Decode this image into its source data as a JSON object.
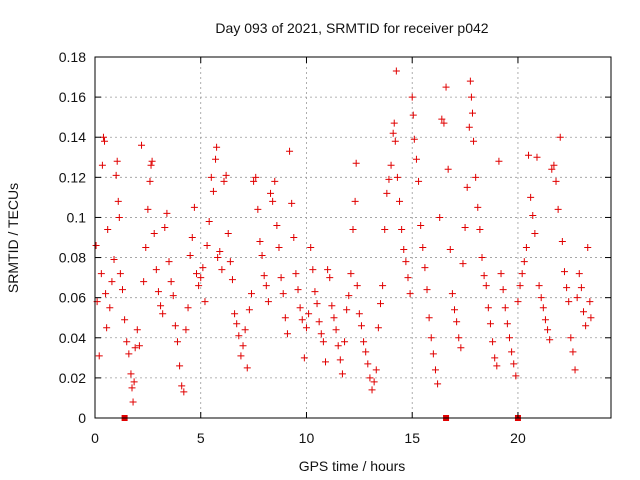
{
  "chart_data": {
    "type": "scatter",
    "title": "Day 093 of 2021, SRMTID for receiver p042",
    "xlabel": "GPS time / hours",
    "ylabel": "SRMTID / TECUs",
    "xlim": [
      0,
      24.4
    ],
    "ylim": [
      0,
      0.18
    ],
    "grid": true,
    "x_ticks": [
      0,
      5,
      10,
      15,
      20
    ],
    "x_tick_labels": [
      "0",
      "5",
      "10",
      "15",
      "20"
    ],
    "y_ticks": [
      0,
      0.02,
      0.04,
      0.06,
      0.08,
      0.1,
      0.12,
      0.14,
      0.16,
      0.18
    ],
    "y_tick_labels": [
      "0",
      "0.02",
      "0.04",
      "0.06",
      "0.08",
      "0.1",
      "0.12",
      "0.14",
      "0.16",
      "0.18"
    ],
    "marker_color": "#e00000",
    "marker_symbol": "+",
    "baseline_markers_x": [
      1.4,
      16.6,
      20.0
    ],
    "series": [
      {
        "name": "SRMTID",
        "points": [
          [
            0.05,
            0.086
          ],
          [
            0.1,
            0.058
          ],
          [
            0.2,
            0.031
          ],
          [
            0.3,
            0.072
          ],
          [
            0.35,
            0.126
          ],
          [
            0.4,
            0.14
          ],
          [
            0.45,
            0.138
          ],
          [
            0.5,
            0.062
          ],
          [
            0.55,
            0.045
          ],
          [
            0.6,
            0.094
          ],
          [
            0.7,
            0.055
          ],
          [
            0.8,
            0.068
          ],
          [
            0.9,
            0.079
          ],
          [
            1.0,
            0.121
          ],
          [
            1.05,
            0.128
          ],
          [
            1.1,
            0.108
          ],
          [
            1.15,
            0.1
          ],
          [
            1.2,
            0.072
          ],
          [
            1.3,
            0.064
          ],
          [
            1.4,
            0.049
          ],
          [
            1.5,
            0.038
          ],
          [
            1.6,
            0.032
          ],
          [
            1.7,
            0.022
          ],
          [
            1.75,
            0.015
          ],
          [
            1.8,
            0.008
          ],
          [
            1.85,
            0.018
          ],
          [
            1.9,
            0.035
          ],
          [
            2.0,
            0.044
          ],
          [
            2.1,
            0.036
          ],
          [
            2.2,
            0.136
          ],
          [
            2.3,
            0.068
          ],
          [
            2.4,
            0.085
          ],
          [
            2.5,
            0.104
          ],
          [
            2.6,
            0.118
          ],
          [
            2.65,
            0.126
          ],
          [
            2.7,
            0.128
          ],
          [
            2.8,
            0.092
          ],
          [
            2.9,
            0.074
          ],
          [
            3.0,
            0.063
          ],
          [
            3.1,
            0.056
          ],
          [
            3.2,
            0.052
          ],
          [
            3.3,
            0.095
          ],
          [
            3.4,
            0.102
          ],
          [
            3.5,
            0.078
          ],
          [
            3.6,
            0.068
          ],
          [
            3.7,
            0.061
          ],
          [
            3.8,
            0.046
          ],
          [
            3.9,
            0.038
          ],
          [
            4.0,
            0.026
          ],
          [
            4.1,
            0.016
          ],
          [
            4.2,
            0.013
          ],
          [
            4.3,
            0.044
          ],
          [
            4.4,
            0.055
          ],
          [
            4.5,
            0.081
          ],
          [
            4.6,
            0.09
          ],
          [
            4.7,
            0.105
          ],
          [
            4.8,
            0.072
          ],
          [
            4.9,
            0.066
          ],
          [
            5.0,
            0.07
          ],
          [
            5.1,
            0.075
          ],
          [
            5.2,
            0.058
          ],
          [
            5.3,
            0.086
          ],
          [
            5.4,
            0.098
          ],
          [
            5.5,
            0.12
          ],
          [
            5.6,
            0.113
          ],
          [
            5.7,
            0.129
          ],
          [
            5.75,
            0.135
          ],
          [
            5.8,
            0.08
          ],
          [
            5.9,
            0.083
          ],
          [
            6.0,
            0.074
          ],
          [
            6.1,
            0.118
          ],
          [
            6.2,
            0.121
          ],
          [
            6.3,
            0.092
          ],
          [
            6.4,
            0.078
          ],
          [
            6.5,
            0.069
          ],
          [
            6.6,
            0.052
          ],
          [
            6.7,
            0.047
          ],
          [
            6.8,
            0.041
          ],
          [
            6.9,
            0.031
          ],
          [
            7.0,
            0.036
          ],
          [
            7.1,
            0.044
          ],
          [
            7.2,
            0.025
          ],
          [
            7.3,
            0.054
          ],
          [
            7.4,
            0.062
          ],
          [
            7.5,
            0.118
          ],
          [
            7.6,
            0.12
          ],
          [
            7.7,
            0.104
          ],
          [
            7.8,
            0.088
          ],
          [
            7.9,
            0.081
          ],
          [
            8.0,
            0.071
          ],
          [
            8.1,
            0.066
          ],
          [
            8.2,
            0.058
          ],
          [
            8.3,
            0.112
          ],
          [
            8.4,
            0.108
          ],
          [
            8.5,
            0.118
          ],
          [
            8.6,
            0.096
          ],
          [
            8.7,
            0.085
          ],
          [
            8.8,
            0.07
          ],
          [
            8.9,
            0.062
          ],
          [
            9.0,
            0.05
          ],
          [
            9.1,
            0.042
          ],
          [
            9.2,
            0.133
          ],
          [
            9.3,
            0.107
          ],
          [
            9.4,
            0.09
          ],
          [
            9.5,
            0.072
          ],
          [
            9.6,
            0.064
          ],
          [
            9.7,
            0.055
          ],
          [
            9.8,
            0.049
          ],
          [
            9.9,
            0.03
          ],
          [
            10.0,
            0.045
          ],
          [
            10.1,
            0.052
          ],
          [
            10.2,
            0.085
          ],
          [
            10.3,
            0.074
          ],
          [
            10.4,
            0.063
          ],
          [
            10.5,
            0.057
          ],
          [
            10.6,
            0.048
          ],
          [
            10.7,
            0.042
          ],
          [
            10.8,
            0.038
          ],
          [
            10.9,
            0.028
          ],
          [
            11.0,
            0.074
          ],
          [
            11.1,
            0.07
          ],
          [
            11.2,
            0.056
          ],
          [
            11.3,
            0.05
          ],
          [
            11.4,
            0.044
          ],
          [
            11.5,
            0.036
          ],
          [
            11.6,
            0.029
          ],
          [
            11.7,
            0.022
          ],
          [
            11.8,
            0.038
          ],
          [
            11.9,
            0.054
          ],
          [
            12.0,
            0.061
          ],
          [
            12.1,
            0.072
          ],
          [
            12.2,
            0.094
          ],
          [
            12.3,
            0.108
          ],
          [
            12.35,
            0.127
          ],
          [
            12.4,
            0.066
          ],
          [
            12.5,
            0.052
          ],
          [
            12.6,
            0.046
          ],
          [
            12.7,
            0.038
          ],
          [
            12.8,
            0.033
          ],
          [
            12.9,
            0.027
          ],
          [
            13.0,
            0.02
          ],
          [
            13.1,
            0.014
          ],
          [
            13.2,
            0.018
          ],
          [
            13.3,
            0.024
          ],
          [
            13.4,
            0.045
          ],
          [
            13.5,
            0.057
          ],
          [
            13.6,
            0.066
          ],
          [
            13.7,
            0.094
          ],
          [
            13.8,
            0.112
          ],
          [
            13.9,
            0.119
          ],
          [
            14.0,
            0.126
          ],
          [
            14.1,
            0.142
          ],
          [
            14.15,
            0.147
          ],
          [
            14.2,
            0.138
          ],
          [
            14.25,
            0.173
          ],
          [
            14.3,
            0.12
          ],
          [
            14.4,
            0.108
          ],
          [
            14.5,
            0.094
          ],
          [
            14.6,
            0.084
          ],
          [
            14.7,
            0.078
          ],
          [
            14.8,
            0.07
          ],
          [
            14.9,
            0.062
          ],
          [
            15.0,
            0.16
          ],
          [
            15.05,
            0.151
          ],
          [
            15.1,
            0.139
          ],
          [
            15.2,
            0.129
          ],
          [
            15.3,
            0.118
          ],
          [
            15.4,
            0.096
          ],
          [
            15.5,
            0.085
          ],
          [
            15.6,
            0.075
          ],
          [
            15.7,
            0.064
          ],
          [
            15.8,
            0.05
          ],
          [
            15.9,
            0.04
          ],
          [
            16.0,
            0.032
          ],
          [
            16.1,
            0.024
          ],
          [
            16.2,
            0.017
          ],
          [
            16.3,
            0.1
          ],
          [
            16.4,
            0.149
          ],
          [
            16.5,
            0.147
          ],
          [
            16.6,
            0.165
          ],
          [
            16.7,
            0.124
          ],
          [
            16.8,
            0.084
          ],
          [
            16.9,
            0.062
          ],
          [
            17.0,
            0.054
          ],
          [
            17.1,
            0.048
          ],
          [
            17.2,
            0.04
          ],
          [
            17.3,
            0.035
          ],
          [
            17.4,
            0.077
          ],
          [
            17.5,
            0.095
          ],
          [
            17.6,
            0.115
          ],
          [
            17.7,
            0.145
          ],
          [
            17.75,
            0.168
          ],
          [
            17.8,
            0.16
          ],
          [
            17.85,
            0.152
          ],
          [
            17.9,
            0.138
          ],
          [
            18.0,
            0.12
          ],
          [
            18.1,
            0.105
          ],
          [
            18.2,
            0.094
          ],
          [
            18.3,
            0.08
          ],
          [
            18.4,
            0.071
          ],
          [
            18.5,
            0.066
          ],
          [
            18.6,
            0.055
          ],
          [
            18.7,
            0.047
          ],
          [
            18.8,
            0.038
          ],
          [
            18.9,
            0.03
          ],
          [
            19.0,
            0.026
          ],
          [
            19.1,
            0.128
          ],
          [
            19.2,
            0.072
          ],
          [
            19.3,
            0.064
          ],
          [
            19.4,
            0.055
          ],
          [
            19.5,
            0.047
          ],
          [
            19.6,
            0.04
          ],
          [
            19.7,
            0.033
          ],
          [
            19.8,
            0.027
          ],
          [
            19.9,
            0.021
          ],
          [
            20.0,
            0.058
          ],
          [
            20.1,
            0.066
          ],
          [
            20.2,
            0.072
          ],
          [
            20.3,
            0.078
          ],
          [
            20.4,
            0.085
          ],
          [
            20.5,
            0.131
          ],
          [
            20.6,
            0.11
          ],
          [
            20.7,
            0.101
          ],
          [
            20.8,
            0.092
          ],
          [
            20.9,
            0.13
          ],
          [
            21.0,
            0.066
          ],
          [
            21.1,
            0.06
          ],
          [
            21.2,
            0.055
          ],
          [
            21.3,
            0.049
          ],
          [
            21.4,
            0.044
          ],
          [
            21.5,
            0.039
          ],
          [
            21.6,
            0.124
          ],
          [
            21.7,
            0.126
          ],
          [
            21.8,
            0.118
          ],
          [
            21.9,
            0.104
          ],
          [
            22.0,
            0.14
          ],
          [
            22.1,
            0.088
          ],
          [
            22.2,
            0.073
          ],
          [
            22.3,
            0.065
          ],
          [
            22.4,
            0.058
          ],
          [
            22.5,
            0.04
          ],
          [
            22.6,
            0.033
          ],
          [
            22.7,
            0.024
          ],
          [
            22.8,
            0.06
          ],
          [
            22.9,
            0.072
          ],
          [
            23.0,
            0.065
          ],
          [
            23.1,
            0.053
          ],
          [
            23.2,
            0.046
          ],
          [
            23.3,
            0.085
          ],
          [
            23.4,
            0.058
          ],
          [
            23.45,
            0.05
          ]
        ]
      }
    ]
  }
}
